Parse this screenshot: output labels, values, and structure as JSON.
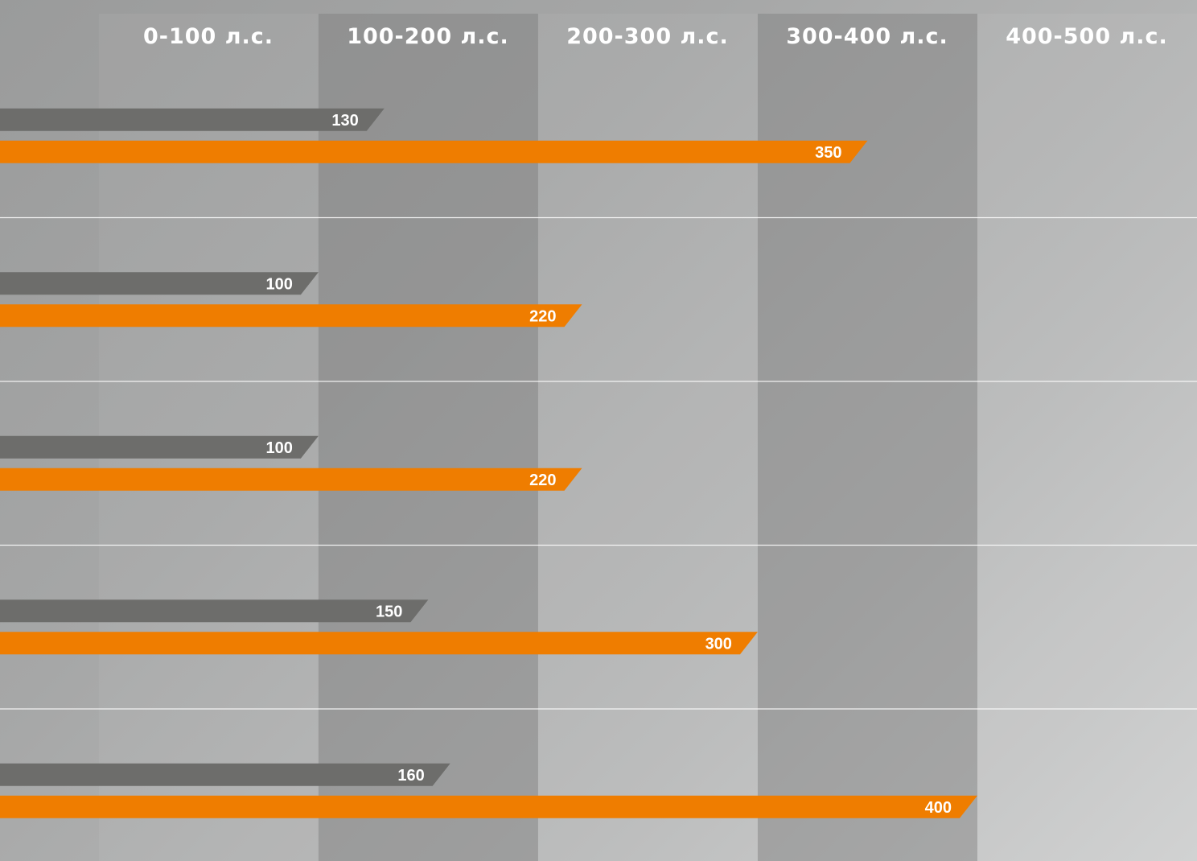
{
  "chart_data": {
    "type": "bar",
    "orientation": "horizontal",
    "categories": [
      "",
      "",
      "",
      "",
      ""
    ],
    "column_headers": [
      "0-100 л.с.",
      "100-200 л.с.",
      "200-300 л.с.",
      "300-400 л.с.",
      "400-500 л.с."
    ],
    "series": [
      {
        "values": [
          130,
          100,
          100,
          150,
          160
        ]
      },
      {
        "values": [
          350,
          220,
          220,
          300,
          400
        ]
      }
    ],
    "xlim": [
      -45,
      500
    ],
    "grid": false,
    "colors": {
      "series_1": "#6d6d6b",
      "series_2": "#ef7d00",
      "band_dark": "#7e7e7e",
      "band_light": "#ffffff",
      "divider": "#ffffff"
    }
  }
}
